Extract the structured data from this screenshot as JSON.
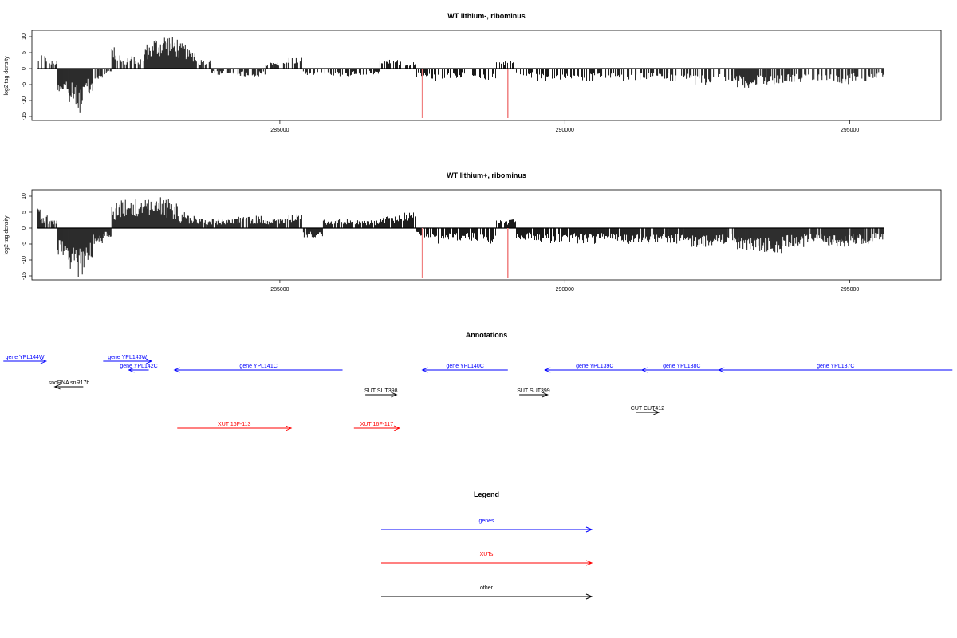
{
  "chart_data": [
    {
      "type": "bar",
      "title": "WT lithium-, ribominus",
      "ylabel": "log2 tag density",
      "xlim": [
        280650,
        296600
      ],
      "ylim": [
        -16,
        12
      ],
      "x_ticks": [
        "285000",
        "290000",
        "295000"
      ],
      "y_ticks": [
        "10",
        "5",
        "0",
        "-5",
        "-10",
        "-15"
      ],
      "grid": false,
      "series": [
        {
          "name": "",
          "note_values": "log2 tag density per position (positive above, negative below)",
          "x": [
            280750,
            280850,
            281000,
            281200,
            281350,
            281500,
            281650,
            281800,
            282000,
            282100,
            282150,
            282250,
            282400,
            282550,
            282700,
            282850,
            283000,
            283150,
            283300,
            283450,
            283600,
            284000,
            284500,
            285000,
            285300,
            285500,
            286000,
            286500,
            287000,
            287300,
            287500,
            287800,
            288000,
            288300,
            288600,
            289000,
            289300,
            289600,
            290000,
            290400,
            290800,
            291200,
            291600,
            292000,
            292400,
            292800,
            293200,
            293600,
            294000,
            294400,
            294800,
            295200,
            295600
          ],
          "values": [
            3,
            4.5,
            2.5,
            -8,
            -12,
            -14,
            -9,
            -4,
            -2,
            7,
            5,
            3,
            4,
            3,
            8,
            10,
            11,
            10,
            8,
            6,
            3,
            -2,
            -2.5,
            2,
            3.5,
            -2,
            -2.5,
            -2,
            3,
            2.5,
            -3,
            -4,
            -3.5,
            -3,
            -4,
            2.5,
            -3,
            -4,
            -3.5,
            -4,
            -3,
            -4,
            -3.5,
            -4,
            -5,
            -4,
            -6,
            -5,
            -4.5,
            -4,
            -5,
            -4,
            -3
          ]
        }
      ],
      "markers_x": [
        287500,
        289000
      ],
      "marker_color": "#f08080"
    },
    {
      "type": "bar",
      "title": "WT lithium+, ribominus",
      "ylabel": "log2 tag density",
      "xlim": [
        280650,
        296600
      ],
      "ylim": [
        -16,
        12
      ],
      "x_ticks": [
        "285000",
        "290000",
        "295000"
      ],
      "y_ticks": [
        "10",
        "5",
        "0",
        "-5",
        "-10",
        "-15"
      ],
      "grid": false,
      "series": [
        {
          "name": "",
          "x": [
            280750,
            280850,
            281000,
            281200,
            281350,
            281500,
            281650,
            281800,
            282000,
            282100,
            282150,
            282250,
            282400,
            282550,
            282700,
            282850,
            283000,
            283150,
            283300,
            283450,
            283600,
            284000,
            284500,
            285000,
            285300,
            285500,
            286000,
            286500,
            287000,
            287300,
            287500,
            287800,
            288000,
            288300,
            288600,
            289000,
            289300,
            289600,
            290000,
            290400,
            290800,
            291200,
            291600,
            292000,
            292400,
            292800,
            293200,
            293600,
            294000,
            294400,
            294800,
            295200,
            295600
          ],
          "values": [
            7,
            4,
            3,
            -10,
            -13,
            -15.5,
            -10,
            -5,
            -3,
            7,
            8,
            9,
            9,
            8,
            9,
            10,
            9,
            8,
            5,
            4,
            3,
            3,
            4,
            3,
            4.5,
            -3,
            3,
            2.5,
            4,
            5,
            -3,
            -5,
            -4.5,
            -4,
            -5,
            3,
            -4,
            -5,
            -4.5,
            -5,
            -4,
            -5,
            -5,
            -5,
            -6,
            -5,
            -7,
            -8,
            -6,
            -5,
            -6,
            -5,
            -4
          ]
        }
      ],
      "markers_x": [
        287500,
        289000
      ],
      "marker_color": "#f08080"
    }
  ],
  "annotations": {
    "title": "Annotations",
    "items": [
      {
        "label": "gene YPL144W",
        "start": 280150,
        "end": 280900,
        "dir": "right",
        "color": "#0000ff",
        "row": 0
      },
      {
        "label": "gene YPL143W",
        "start": 281900,
        "end": 282750,
        "dir": "right",
        "color": "#0000ff",
        "row": 0
      },
      {
        "label": "gene YPL142C",
        "start": 282350,
        "end": 282700,
        "dir": "left",
        "color": "#0000ff",
        "row": 1
      },
      {
        "label": "gene YPL141C",
        "start": 283150,
        "end": 286100,
        "dir": "left",
        "color": "#0000ff",
        "row": 1
      },
      {
        "label": "gene YPL140C",
        "start": 287500,
        "end": 289000,
        "dir": "left",
        "color": "#0000ff",
        "row": 1
      },
      {
        "label": "gene YPL139C",
        "start": 289650,
        "end": 291400,
        "dir": "left",
        "color": "#0000ff",
        "row": 1
      },
      {
        "label": "gene YPL138C",
        "start": 291350,
        "end": 292750,
        "dir": "left",
        "color": "#0000ff",
        "row": 1
      },
      {
        "label": "gene YPL137C",
        "start": 292700,
        "end": 296800,
        "dir": "left",
        "color": "#0000ff",
        "row": 1
      },
      {
        "label": "snoRNA snR17b",
        "start": 281050,
        "end": 281550,
        "dir": "left",
        "color": "#000000",
        "row": 2
      },
      {
        "label": "SUT SUT398",
        "start": 286500,
        "end": 287050,
        "dir": "right",
        "color": "#000000",
        "row": 3
      },
      {
        "label": "SUT SUT399",
        "start": 289200,
        "end": 289700,
        "dir": "right",
        "color": "#000000",
        "row": 3
      },
      {
        "label": "CUT CUT412",
        "start": 291250,
        "end": 291650,
        "dir": "right",
        "color": "#000000",
        "row": 4
      },
      {
        "label": "XUT 16F-113",
        "start": 283200,
        "end": 285200,
        "dir": "right",
        "color": "#ff0000",
        "row": 5
      },
      {
        "label": "XUT 16F-117",
        "start": 286300,
        "end": 287100,
        "dir": "right",
        "color": "#ff0000",
        "row": 5
      }
    ]
  },
  "legend": {
    "title": "Legend",
    "items": [
      {
        "label": "genes",
        "color": "#0000ff"
      },
      {
        "label": "XUTs",
        "color": "#ff0000"
      },
      {
        "label": "other",
        "color": "#000000"
      }
    ]
  }
}
